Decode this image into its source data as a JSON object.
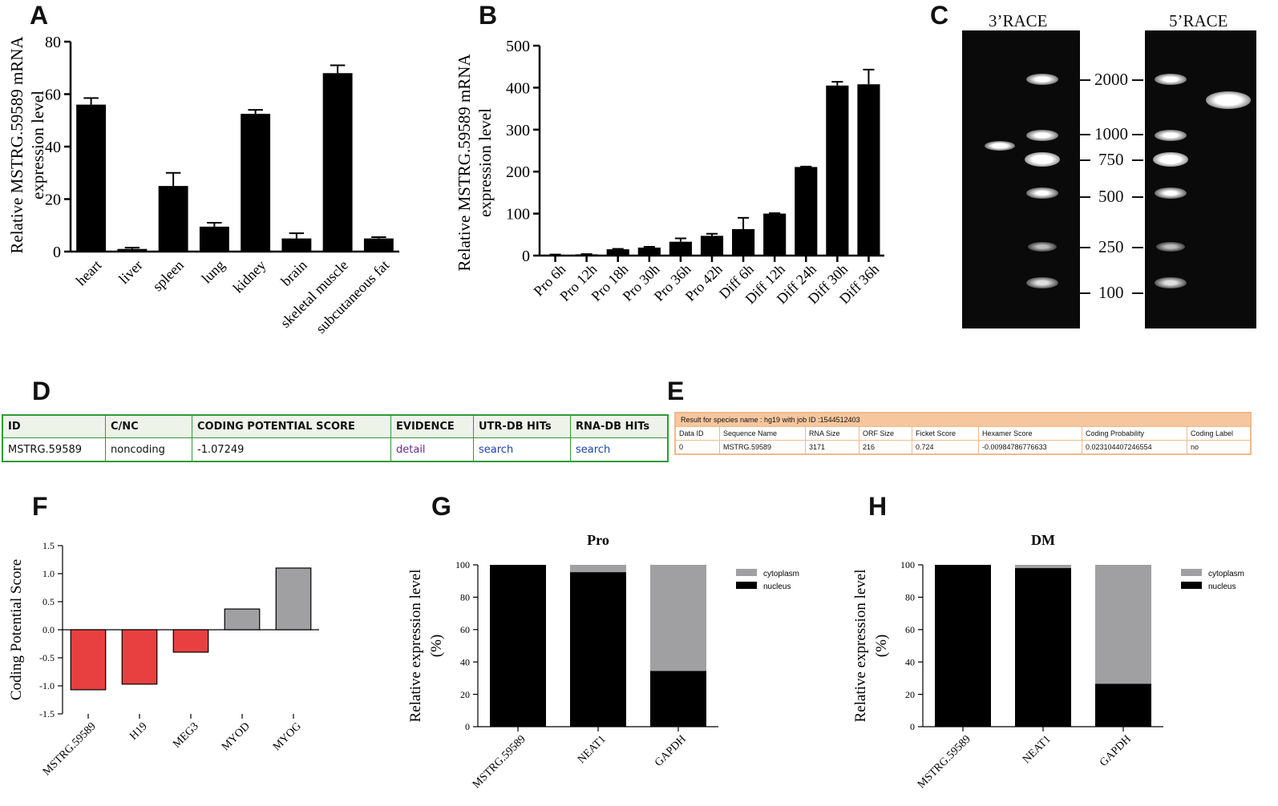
{
  "panels": {
    "a": "A",
    "b": "B",
    "c": "C",
    "d": "D",
    "e": "E",
    "f": "F",
    "g": "G",
    "h": "H"
  },
  "chart_data": [
    {
      "id": "A",
      "type": "bar",
      "ylabel": [
        "Relative MSTRG.59589 mRNA",
        "expression level"
      ],
      "ylim": [
        0,
        80
      ],
      "yticks": [
        0,
        20,
        40,
        60,
        80
      ],
      "categories": [
        "heart",
        "liver",
        "spleen",
        "lung",
        "kidney",
        "brain",
        "skeletal muscle",
        "subcutaneous fat"
      ],
      "values": [
        56,
        1,
        25,
        9.5,
        52.5,
        5,
        68,
        5
      ],
      "errors": [
        2.5,
        0.5,
        5,
        1.5,
        1.5,
        2,
        3,
        0.5
      ],
      "color": "#000000"
    },
    {
      "id": "B",
      "type": "bar",
      "ylabel": [
        "Relative MSTRG.59589 mRNA",
        "expression level"
      ],
      "ylim": [
        0,
        500
      ],
      "yticks": [
        0,
        100,
        200,
        300,
        400,
        500
      ],
      "categories": [
        "Pro 6h",
        "Pro 12h",
        "Pro 18h",
        "Pro 30h",
        "Pro 36h",
        "Pro 42h",
        "Diff 6h",
        "Diff 12h",
        "Diff 24h",
        "Diff 30h",
        "Diff 36h"
      ],
      "values": [
        2,
        3,
        15,
        19,
        33,
        47,
        63,
        100,
        211,
        405,
        408
      ],
      "errors": [
        0.5,
        0.5,
        1,
        2,
        8,
        5,
        27,
        1,
        1,
        9,
        35
      ],
      "color": "#000000"
    },
    {
      "id": "F",
      "type": "bar",
      "ylabel": [
        "Coding Potential Score"
      ],
      "ylim": [
        -1.5,
        1.5
      ],
      "yticks": [
        -1.5,
        -1.0,
        -0.5,
        0.0,
        0.5,
        1.0,
        1.5
      ],
      "ytick_labels": [
        "-1.5",
        "-1.0",
        "-0.5",
        "0.0",
        "0.5",
        "1.0",
        "1.5"
      ],
      "categories": [
        "MSTRG.59589",
        "H19",
        "MEG3",
        "MYOD",
        "MYOG"
      ],
      "values": [
        -1.07,
        -0.97,
        -0.4,
        0.37,
        1.1
      ],
      "colors": [
        "#e84040",
        "#e84040",
        "#e84040",
        "#a0a0a3",
        "#a0a0a3"
      ]
    },
    {
      "id": "G",
      "type": "bar",
      "stacked": true,
      "title": "Pro",
      "ylabel": [
        "Relative  expression level",
        "(%)"
      ],
      "ylim": [
        0,
        100
      ],
      "yticks": [
        0,
        20,
        40,
        60,
        80,
        100
      ],
      "categories": [
        "MSTRG.59589",
        "NEAT1",
        "GAPDH"
      ],
      "series": [
        {
          "name": "nucleus",
          "values": [
            100,
            95.5,
            34.5
          ],
          "color": "#000000"
        },
        {
          "name": "cytoplasm",
          "values": [
            0,
            4.5,
            65.5
          ],
          "color": "#a0a0a3"
        }
      ],
      "legend": [
        "cytoplasm",
        "nucleus"
      ]
    },
    {
      "id": "H",
      "type": "bar",
      "stacked": true,
      "title": "DM",
      "ylabel": [
        "Relative  expression level",
        "(%)"
      ],
      "ylim": [
        0,
        100
      ],
      "yticks": [
        0,
        20,
        40,
        60,
        80,
        100
      ],
      "categories": [
        "MSTRG.59589",
        "NEAT1",
        "GAPDH"
      ],
      "series": [
        {
          "name": "nucleus",
          "values": [
            100,
            98,
            26.5
          ],
          "color": "#000000"
        },
        {
          "name": "cytoplasm",
          "values": [
            0,
            2,
            73.5
          ],
          "color": "#a0a0a3"
        }
      ],
      "legend": [
        "cytoplasm",
        "nucleus"
      ]
    }
  ],
  "gel": {
    "lane_3race": "3’RACE",
    "lane_5race": "5’RACE",
    "markers": [
      "2000",
      "1000",
      "750",
      "500",
      "250",
      "100"
    ]
  },
  "tableD": {
    "headers": [
      "ID",
      "C/NC",
      "CODING POTENTIAL SCORE",
      "EVIDENCE",
      "UTR-DB HITs",
      "RNA-DB HITs"
    ],
    "row": [
      "MSTRG.59589",
      "noncoding",
      "-1.07249",
      "detail",
      "search",
      "search"
    ],
    "colors": {
      "border": "#2f9b35",
      "detail": "#6b2c91",
      "search": "#1b3fa6"
    }
  },
  "tableE": {
    "caption": "Result for species name : hg19 with job ID :1544512403",
    "headers": [
      "Data ID",
      "Sequence Name",
      "RNA Size",
      "ORF Size",
      "Ficket Score",
      "Hexamer Score",
      "Coding Probability",
      "Coding Label"
    ],
    "row": [
      "0",
      "MSTRG.59589",
      "3171",
      "216",
      "0.724",
      "-0.00984786776633",
      "0.023104407246554",
      "no"
    ]
  }
}
